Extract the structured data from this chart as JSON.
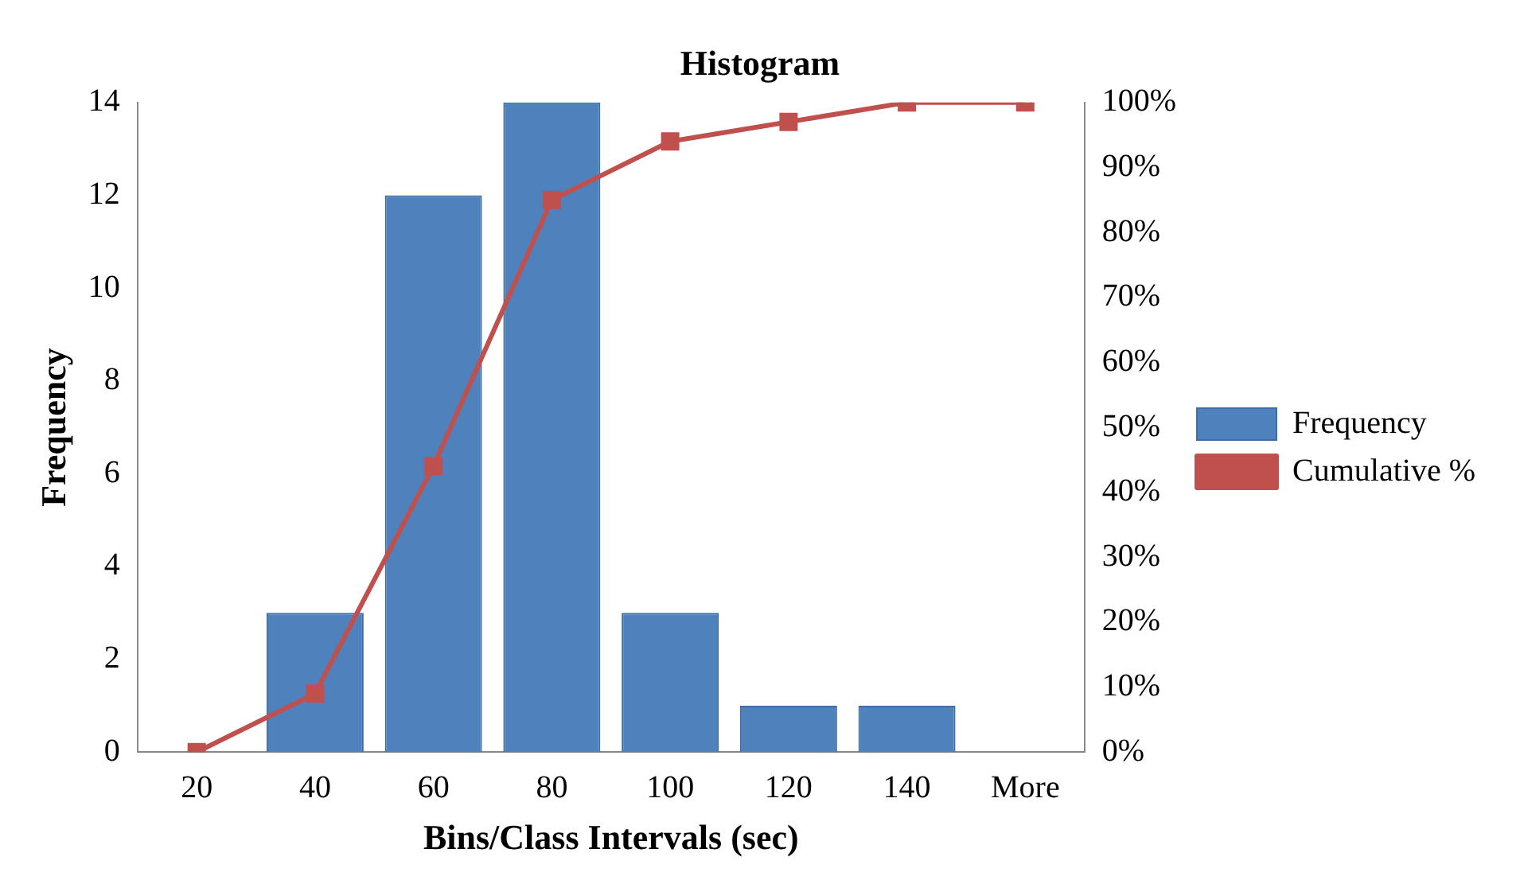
{
  "chart_data": {
    "type": "bar",
    "title": "Histogram",
    "xlabel": "Bins/Class Intervals (sec)",
    "ylabel": "Frequency",
    "categories": [
      "20",
      "40",
      "60",
      "80",
      "100",
      "120",
      "140",
      "More"
    ],
    "series": [
      {
        "name": "Frequency",
        "color": "#4f81bd",
        "values": [
          0,
          3,
          12,
          14,
          3,
          1,
          1,
          0
        ]
      },
      {
        "name": "Cumulative %",
        "type": "line",
        "axis": "y2",
        "color": "#c0504d",
        "marker": "square",
        "values": [
          0,
          9,
          44,
          85,
          94,
          97,
          100,
          100
        ]
      }
    ],
    "ylim": [
      0,
      14
    ],
    "yticks": [
      0,
      2,
      4,
      6,
      8,
      10,
      12,
      14
    ],
    "y2lim": [
      0,
      100
    ],
    "y2ticks": [
      {
        "value": 0,
        "label": "0%"
      },
      {
        "value": 10,
        "label": "10%"
      },
      {
        "value": 20,
        "label": "20%"
      },
      {
        "value": 30,
        "label": "30%"
      },
      {
        "value": 40,
        "label": "40%"
      },
      {
        "value": 50,
        "label": "50%"
      },
      {
        "value": 60,
        "label": "60%"
      },
      {
        "value": 70,
        "label": "70%"
      },
      {
        "value": 80,
        "label": "80%"
      },
      {
        "value": 90,
        "label": "90%"
      },
      {
        "value": 100,
        "label": "100%"
      }
    ],
    "legend": "right",
    "grid": false
  }
}
